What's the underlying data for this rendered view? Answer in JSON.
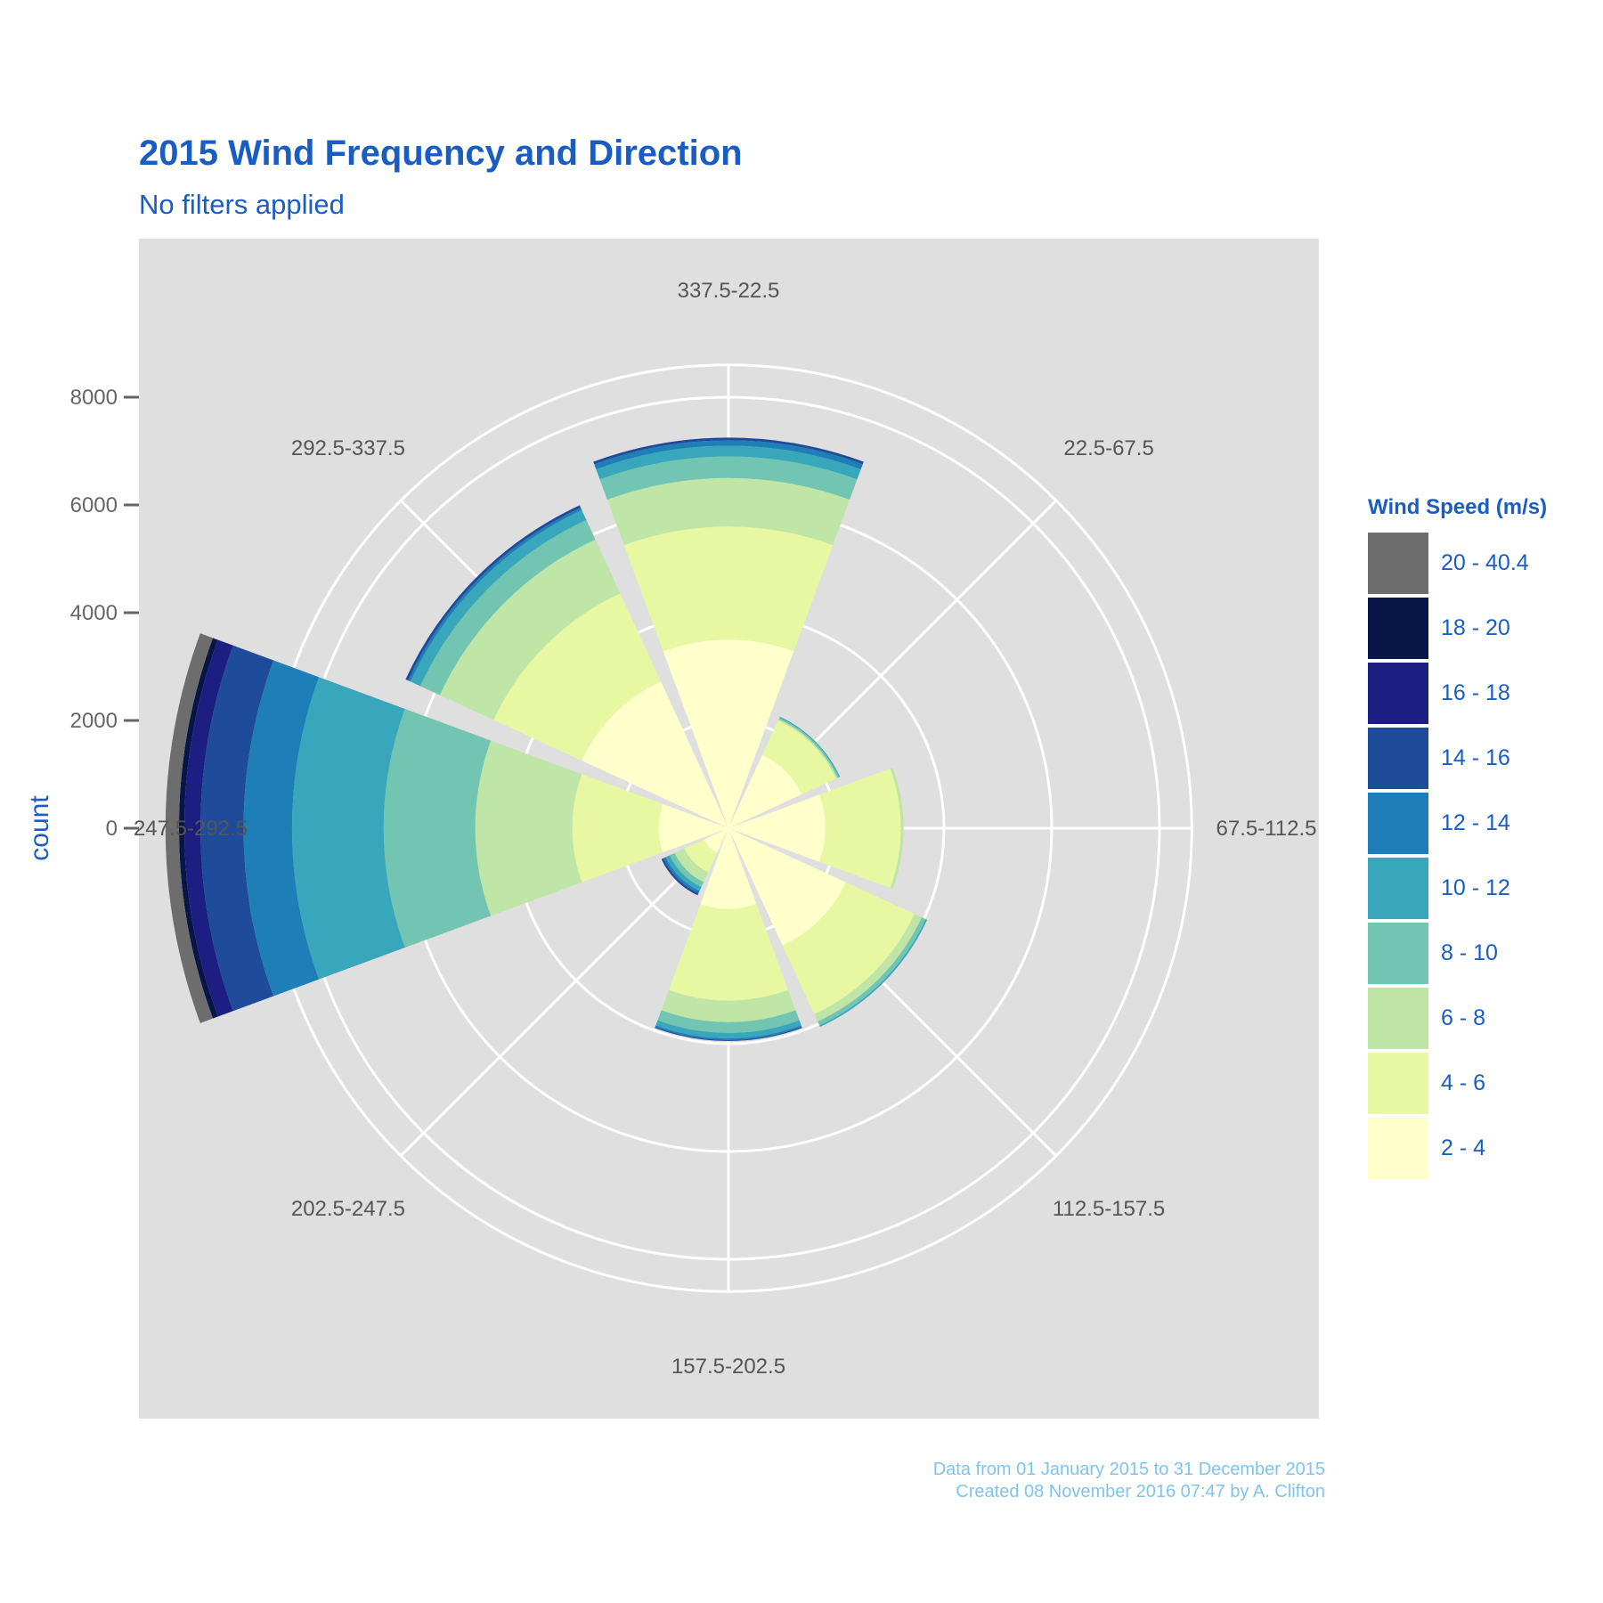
{
  "title": "2015 Wind Frequency and Direction",
  "subtitle": "No filters applied",
  "caption_line1": "Data from 01 January 2015 to 31 December 2015",
  "caption_line2": "Created 08 November 2016 07:47 by A. Clifton",
  "legend_title": "Wind Speed (m/s)",
  "colors": {
    "panel_bg": "#dfdfdf",
    "grid": "#ffffff",
    "title": "#1a5dc2",
    "caption": "#7ec4ef"
  },
  "chart_data": {
    "type": "stacked polar bar (wind rose)",
    "title": "2015 Wind Frequency and Direction",
    "subtitle": "No filters applied",
    "ylabel": "count",
    "y_ticks": [
      0,
      2000,
      4000,
      6000,
      8000
    ],
    "y_range": [
      0,
      8600
    ],
    "directions": [
      "337.5-22.5",
      "22.5-67.5",
      "67.5-112.5",
      "112.5-157.5",
      "157.5-202.5",
      "202.5-247.5",
      "247.5-292.5",
      "292.5-337.5"
    ],
    "speed_bins": [
      {
        "label": "2 - 4",
        "color": "#ffffcc"
      },
      {
        "label": "4 - 6",
        "color": "#e7f7a2"
      },
      {
        "label": "6 - 8",
        "color": "#bfe6a6"
      },
      {
        "label": "8 - 10",
        "color": "#72c5b1"
      },
      {
        "label": "10 - 12",
        "color": "#38a7bb"
      },
      {
        "label": "12 - 14",
        "color": "#1e7fb8"
      },
      {
        "label": "14 - 16",
        "color": "#1f4c9a"
      },
      {
        "label": "16 - 18",
        "color": "#1c1f81"
      },
      {
        "label": "18 - 20",
        "color": "#081647"
      },
      {
        "label": "20 - 40.4",
        "color": "#6d6d6d"
      }
    ],
    "series": [
      {
        "direction": "337.5-22.5",
        "values": [
          3500,
          2100,
          900,
          400,
          200,
          100,
          50,
          0,
          0,
          0
        ]
      },
      {
        "direction": "22.5-67.5",
        "values": [
          1500,
          700,
          30,
          30,
          20,
          0,
          0,
          0,
          0,
          0
        ]
      },
      {
        "direction": "67.5-112.5",
        "values": [
          1800,
          1400,
          50,
          0,
          0,
          0,
          0,
          0,
          0,
          0
        ]
      },
      {
        "direction": "112.5-157.5",
        "values": [
          2400,
          1400,
          150,
          80,
          30,
          0,
          0,
          0,
          0,
          0
        ]
      },
      {
        "direction": "157.5-202.5",
        "values": [
          1500,
          1700,
          400,
          200,
          100,
          30,
          20,
          0,
          0,
          0
        ]
      },
      {
        "direction": "202.5-247.5",
        "values": [
          500,
          400,
          200,
          100,
          80,
          50,
          30,
          10,
          0,
          0
        ]
      },
      {
        "direction": "247.5-292.5",
        "values": [
          1300,
          1600,
          1800,
          1700,
          1700,
          900,
          800,
          300,
          100,
          250
        ]
      },
      {
        "direction": "292.5-337.5",
        "values": [
          3000,
          1800,
          1100,
          400,
          200,
          50,
          50,
          0,
          0,
          0
        ]
      }
    ]
  }
}
